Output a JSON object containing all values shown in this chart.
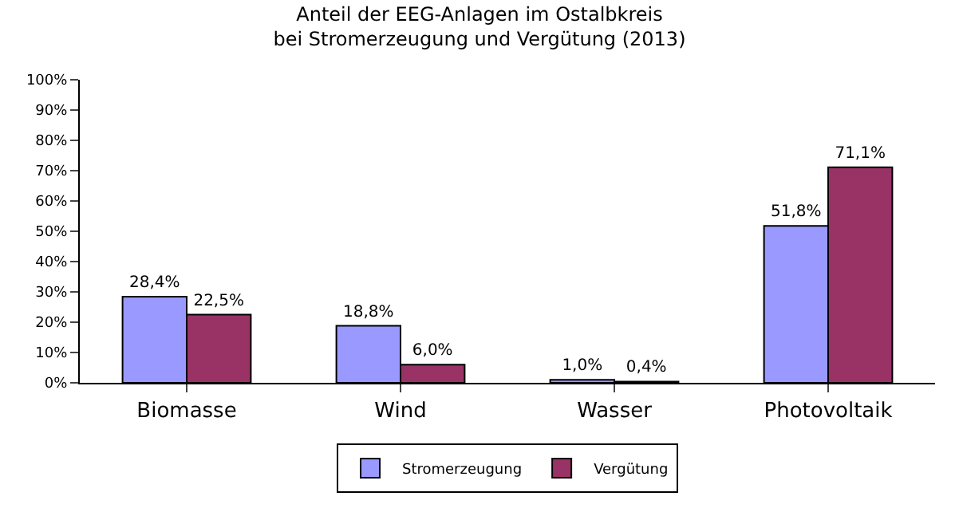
{
  "chart_data": {
    "type": "bar",
    "title": "Anteil der EEG-Anlagen im Ostalbkreis\nbei Stromerzeugung und Vergütung (2013)",
    "categories": [
      "Biomasse",
      "Wind",
      "Wasser",
      "Photovoltaik"
    ],
    "series": [
      {
        "name": "Stromerzeugung",
        "color": "#9999ff",
        "values": [
          28.4,
          18.8,
          1.0,
          51.8
        ],
        "value_labels": [
          "28,4%",
          "18,8%",
          "1,0%",
          "51,8%"
        ]
      },
      {
        "name": "Vergütung",
        "color": "#993366",
        "values": [
          22.5,
          6.0,
          0.4,
          71.1
        ],
        "value_labels": [
          "22,5%",
          "6,0%",
          "0,4%",
          "71,1%"
        ]
      }
    ],
    "ylim": [
      0,
      100
    ],
    "yticks": [
      {
        "value": 0,
        "label": "0%"
      },
      {
        "value": 10,
        "label": "10%"
      },
      {
        "value": 20,
        "label": "20%"
      },
      {
        "value": 30,
        "label": "30%"
      },
      {
        "value": 40,
        "label": "40%"
      },
      {
        "value": 50,
        "label": "50%"
      },
      {
        "value": 60,
        "label": "60%"
      },
      {
        "value": 70,
        "label": "70%"
      },
      {
        "value": 80,
        "label": "80%"
      },
      {
        "value": 90,
        "label": "90%"
      },
      {
        "value": 100,
        "label": "100%"
      }
    ],
    "grid": false,
    "legend": "bottom"
  }
}
